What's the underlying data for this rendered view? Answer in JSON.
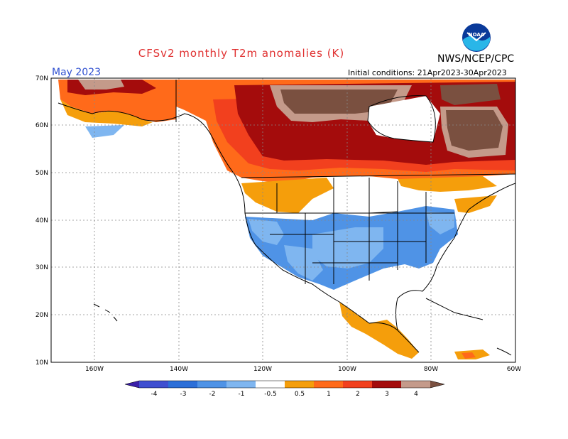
{
  "title": "CFSv2 monthly T2m anomalies (K)",
  "organization": "NWS/NCEP/CPC",
  "logo_text": "NOAA",
  "month": "May 2023",
  "initial_conditions": "Initial conditions: 21Apr2023-30Apr2023",
  "lat_labels": [
    "70N",
    "60N",
    "50N",
    "40N",
    "30N",
    "20N",
    "10N"
  ],
  "lon_labels": [
    "160W",
    "140W",
    "120W",
    "100W",
    "80W",
    "60W"
  ],
  "colorbar": {
    "labels": [
      "-4",
      "-3",
      "-2",
      "-1",
      "-0.5",
      "0.5",
      "1",
      "2",
      "3",
      "4"
    ],
    "colors": [
      "#3a1fa8",
      "#3f4fd0",
      "#2c6fd8",
      "#4f93e6",
      "#7fb6f0",
      "#ffffff",
      "#f59e0b",
      "#ff6a1a",
      "#f2401e",
      "#a40c0c",
      "#c49a8a",
      "#7a5040"
    ]
  }
}
